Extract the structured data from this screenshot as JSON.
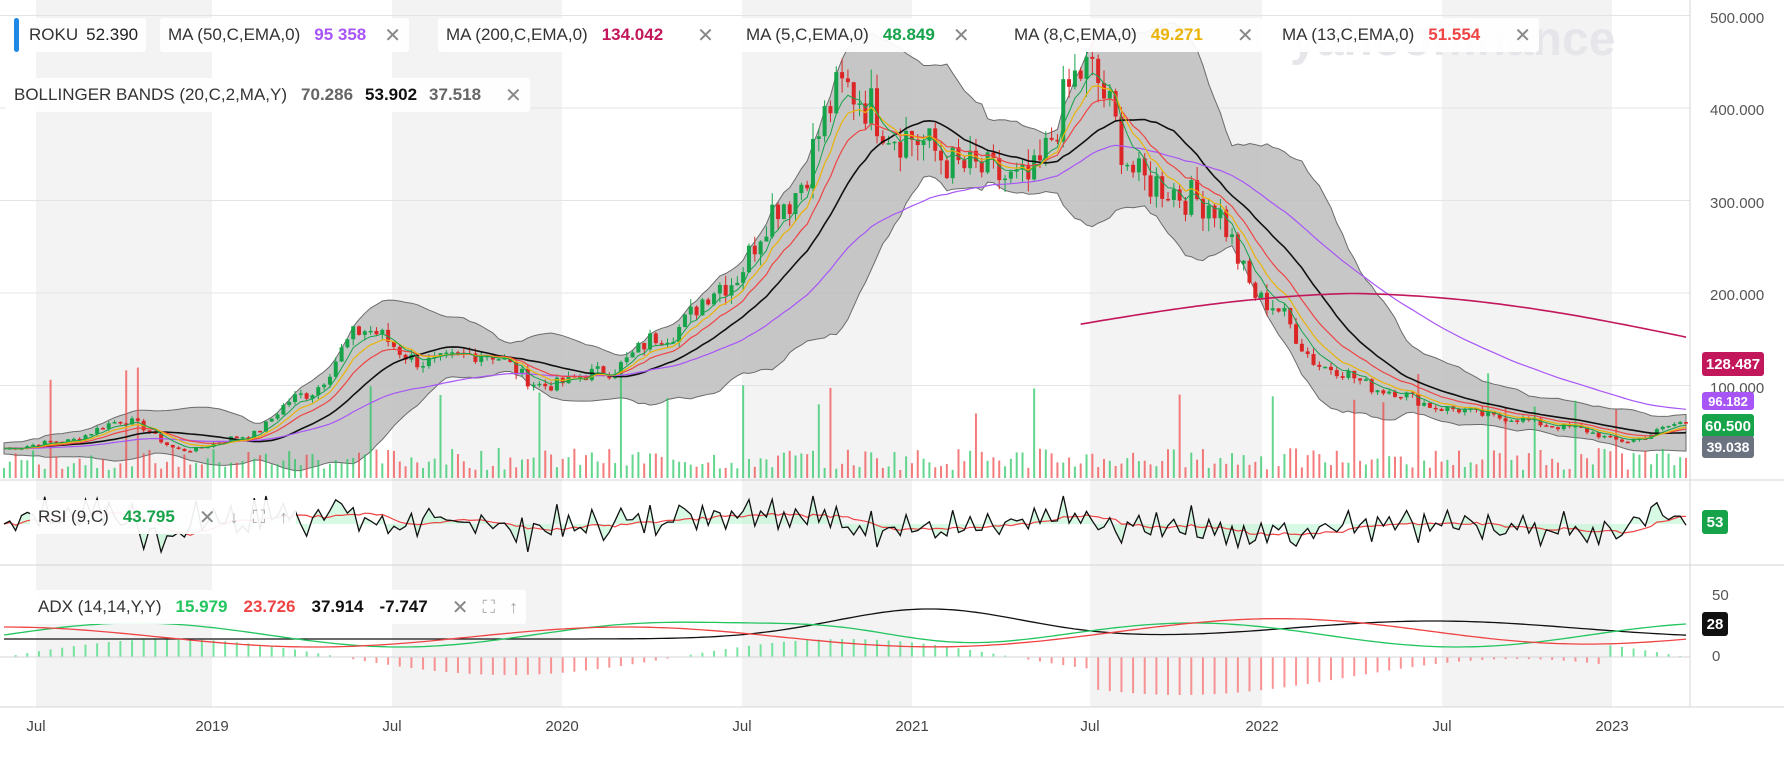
{
  "watermark": "yahoo!finance",
  "symbol": {
    "ticker": "ROKU",
    "price": "52.390",
    "accent": "#1e88e5"
  },
  "overlays": [
    {
      "name": "MA (50,C,EMA,0)",
      "value": "95 358",
      "color": "#a855f7"
    },
    {
      "name": "MA (200,C,EMA,0)",
      "value": "134.042",
      "color": "#c2185b"
    },
    {
      "name": "MA (5,C,EMA,0)",
      "value": "48.849",
      "color": "#16a34a"
    },
    {
      "name": "MA (8,C,EMA,0)",
      "value": "49.271",
      "color": "#eab308"
    },
    {
      "name": "MA (13,C,EMA,0)",
      "value": "51.554",
      "color": "#ef4444"
    }
  ],
  "bollinger": {
    "name": "BOLLINGER BANDS (20,C,2,MA,Y)",
    "upper": "70.286",
    "mid": "53.902",
    "lower": "37.518"
  },
  "rsi": {
    "name": "RSI (9,C)",
    "value": "43.795",
    "badge": "53"
  },
  "adx": {
    "name": "ADX (14,14,Y,Y)",
    "plus_di": "15.979",
    "minus_di": "23.726",
    "adx": "37.914",
    "diff": "-7.747",
    "badge": "28"
  },
  "price_axis": [
    "500.000",
    "400.000",
    "300.000",
    "200.000",
    "100.000"
  ],
  "adx_axis": [
    "50",
    "0"
  ],
  "price_badges": [
    {
      "text": "128.487",
      "color": "#c2185b"
    },
    {
      "text": "96.182",
      "color": "#a855f7"
    },
    {
      "text": "60.500",
      "color": "#16a34a"
    },
    {
      "text": "39.038",
      "color": "#6b7280"
    }
  ],
  "x_labels": [
    "Jul",
    "2019",
    "Jul",
    "2020",
    "Jul",
    "2021",
    "Jul",
    "2022",
    "Jul",
    "2023"
  ],
  "chart_data": {
    "type": "line",
    "title": "ROKU",
    "x": [
      "2018-05",
      "2018-07",
      "2018-10",
      "2018-12",
      "2019-03",
      "2019-06",
      "2019-08",
      "2019-10",
      "2020-01",
      "2020-03",
      "2020-05",
      "2020-07",
      "2020-09",
      "2020-11",
      "2021-01",
      "2021-02",
      "2021-04",
      "2021-05",
      "2021-07",
      "2021-09",
      "2021-11",
      "2022-01",
      "2022-03",
      "2022-05",
      "2022-07",
      "2022-09",
      "2022-11",
      "2023-01",
      "2023-03"
    ],
    "series": [
      {
        "name": "ROKU",
        "values": [
          32,
          40,
          62,
          30,
          45,
          90,
          160,
          125,
          135,
          100,
          115,
          155,
          210,
          300,
          420,
          370,
          335,
          320,
          440,
          320,
          300,
          190,
          120,
          95,
          75,
          65,
          55,
          40,
          60
        ]
      },
      {
        "name": "MA (50,C,EMA,0)",
        "values": [
          30,
          33,
          40,
          35,
          38,
          60,
          95,
          110,
          118,
          110,
          108,
          120,
          150,
          200,
          260,
          290,
          300,
          315,
          340,
          330,
          320,
          290,
          240,
          190,
          160,
          140,
          120,
          100,
          96
        ]
      }
    ],
    "ylim": [
      0,
      520
    ],
    "grid": true
  }
}
